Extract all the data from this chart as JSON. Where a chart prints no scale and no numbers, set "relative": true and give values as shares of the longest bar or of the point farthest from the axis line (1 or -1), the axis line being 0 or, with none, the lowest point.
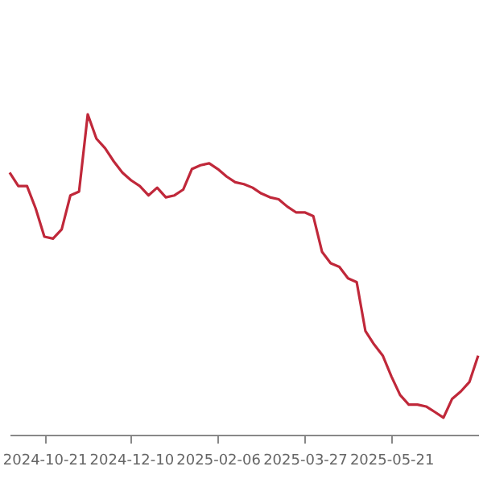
{
  "chart_data": {
    "type": "line",
    "relative": true,
    "grid": false,
    "tick_labels": "x",
    "categories": [
      null,
      null,
      null,
      null,
      "2024-10-21",
      null,
      null,
      null,
      null,
      null,
      null,
      null,
      null,
      null,
      "2024-12-10",
      null,
      null,
      null,
      null,
      null,
      null,
      null,
      null,
      null,
      "2025-02-06",
      null,
      null,
      null,
      null,
      null,
      null,
      null,
      null,
      null,
      "2025-03-27",
      null,
      null,
      null,
      null,
      null,
      null,
      null,
      null,
      null,
      "2025-05-21",
      null,
      null,
      null,
      null,
      null,
      null,
      null,
      null,
      null,
      null
    ],
    "series": [
      {
        "color": "#c0283a",
        "values": [
          0.818,
          0.776,
          0.776,
          0.706,
          0.618,
          0.612,
          0.641,
          0.747,
          0.759,
          1,
          0.924,
          0.894,
          0.853,
          0.818,
          0.794,
          0.776,
          0.747,
          0.771,
          0.741,
          0.747,
          0.765,
          0.829,
          0.841,
          0.847,
          0.829,
          0.806,
          0.788,
          0.782,
          0.771,
          0.753,
          0.741,
          0.735,
          0.712,
          0.694,
          0.694,
          0.682,
          0.571,
          0.535,
          0.524,
          0.488,
          0.476,
          0.324,
          0.282,
          0.247,
          0.182,
          0.124,
          0.094,
          0.094,
          0.088,
          0.071,
          0.053,
          0.112,
          0.135,
          0.165,
          0.247
        ]
      }
    ]
  }
}
